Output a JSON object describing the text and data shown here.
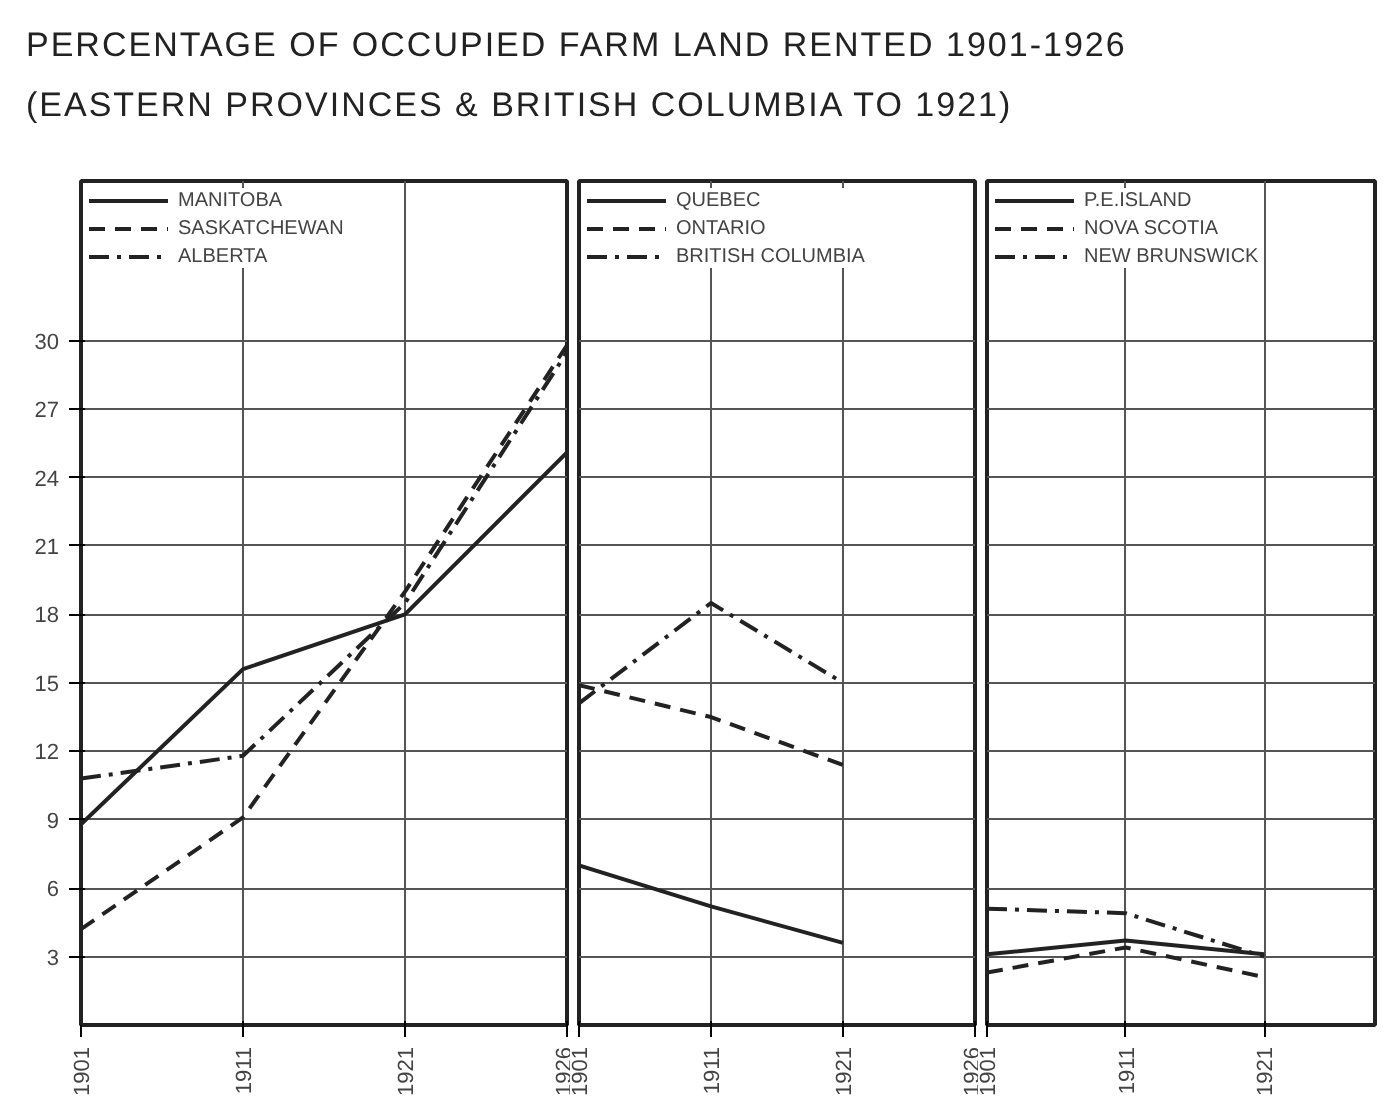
{
  "chart_data": [
    {
      "type": "line",
      "title": "PERCENTAGE OF OCCUPIED FARM LAND RENTED 1901-1926",
      "subtitle": "(EASTERN PROVINCES & BRITISH COLUMBIA TO 1921)",
      "categories": [
        "1901",
        "1911",
        "1921",
        "1926"
      ],
      "ylim": [
        0,
        37
      ],
      "yticks": [
        3,
        6,
        9,
        12,
        15,
        18,
        21,
        24,
        27,
        30
      ],
      "grid": true,
      "legend": "top",
      "series": [
        {
          "name": "MANITOBA",
          "color": "#222222",
          "line_style": "solid",
          "values": [
            8.8,
            15.6,
            18.0,
            25.1
          ]
        },
        {
          "name": "SASKATCHEWAN",
          "color": "#222222",
          "line_style": "dashed",
          "values": [
            4.2,
            9.1,
            19.0,
            29.8
          ]
        },
        {
          "name": "ALBERTA",
          "color": "#222222",
          "line_style": "dashdot",
          "values": [
            10.8,
            11.8,
            18.5,
            29.5
          ]
        }
      ]
    },
    {
      "type": "line",
      "categories": [
        "1901",
        "1911",
        "1921",
        "1926"
      ],
      "ylim": [
        0,
        37
      ],
      "yticks": [
        3,
        6,
        9,
        12,
        15,
        18,
        21,
        24,
        27,
        30
      ],
      "grid": true,
      "legend": "top",
      "tick_labels": "x",
      "series": [
        {
          "name": "QUEBEC",
          "color": "#222222",
          "line_style": "solid",
          "values": [
            7.0,
            5.2,
            3.6,
            null
          ]
        },
        {
          "name": "ONTARIO",
          "color": "#222222",
          "line_style": "dashed",
          "values": [
            14.9,
            13.5,
            11.4,
            null
          ]
        },
        {
          "name": "BRITISH COLUMBIA",
          "color": "#222222",
          "line_style": "dashdot",
          "values": [
            14.1,
            18.5,
            15.0,
            null
          ]
        }
      ]
    },
    {
      "type": "line",
      "categories": [
        "1901",
        "1911",
        "1921"
      ],
      "ylim": [
        0,
        37
      ],
      "yticks": [
        3,
        6,
        9,
        12,
        15,
        18,
        21,
        24,
        27,
        30
      ],
      "grid": true,
      "legend": "top",
      "tick_labels": "x",
      "series": [
        {
          "name": "P.E.ISLAND",
          "color": "#222222",
          "line_style": "solid",
          "values": [
            3.1,
            3.7,
            3.1
          ]
        },
        {
          "name": "NOVA SCOTIA",
          "color": "#222222",
          "line_style": "dashed",
          "values": [
            2.3,
            3.4,
            2.1
          ]
        },
        {
          "name": "NEW BRUNSWICK",
          "color": "#222222",
          "line_style": "dashdot",
          "values": [
            5.1,
            4.9,
            3.0
          ]
        }
      ]
    }
  ]
}
